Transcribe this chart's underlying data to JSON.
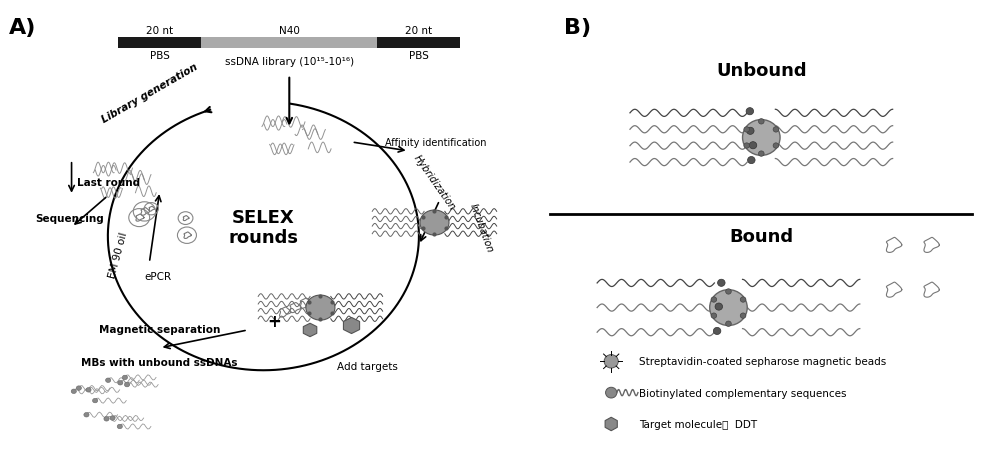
{
  "bg_color": "#ffffff",
  "panel_a_label": "A)",
  "panel_b_label": "B)",
  "dna_bar": {
    "left_label": "20 nt",
    "left_sublabel": "PBS",
    "mid_label": "N40",
    "right_label": "20 nt",
    "right_sublabel": "PBS",
    "library_label": "ssDNA library (10¹⁵-10¹⁶)"
  },
  "selex_center": "SELEX\nrounds",
  "cycle_labels": {
    "library_generation": "Library generation",
    "affinity_identification": "Affinity identification",
    "hybridization": "Hybridization",
    "incubation": "Incubation",
    "add_targets": "Add targets",
    "magnetic_separation": "Magnetic separation",
    "mbs_unbound": "MBs with unbound ssDNAs",
    "epcr": "ePCR",
    "em90oil": "EM 90 oil",
    "last_round": "Last round",
    "sequencing": "Sequencing"
  },
  "panel_b": {
    "unbound_label": "Unbound",
    "bound_label": "Bound",
    "legend": [
      "Streptavidin-coated sepharose magnetic beads",
      "Biotinylated complementary sequences",
      "Target molecule：  DDT"
    ]
  },
  "colors": {
    "black": "#000000",
    "gray": "#808080",
    "light_gray": "#b0b0b0",
    "dark_gray": "#555555",
    "bead_gray": "#999999",
    "bar_black": "#1a1a1a",
    "bar_gray": "#aaaaaa"
  }
}
